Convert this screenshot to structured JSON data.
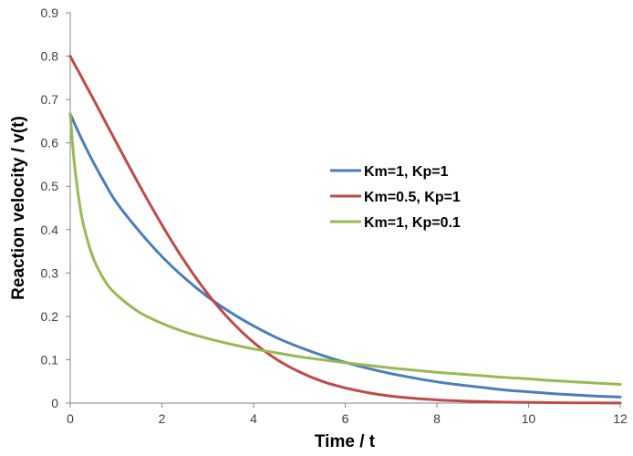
{
  "chart_data": {
    "type": "line",
    "title": "",
    "xlabel": "Time / t",
    "ylabel": "Reaction velocity  / v(t)",
    "xlim": [
      0,
      12
    ],
    "ylim": [
      0,
      0.9
    ],
    "x_ticks": [
      "0",
      "2",
      "4",
      "6",
      "8",
      "10",
      "12"
    ],
    "y_ticks": [
      "0",
      "0.1",
      "0.2",
      "0.3",
      "0.4",
      "0.5",
      "0.6",
      "0.7",
      "0.8",
      "0.9"
    ],
    "grid": false,
    "legend_position": "right-middle",
    "x": [
      0,
      0.05,
      0.1,
      0.2,
      0.3,
      0.5,
      0.75,
      1,
      1.5,
      2,
      2.5,
      3,
      3.5,
      4,
      4.5,
      5,
      5.5,
      6,
      6.5,
      7,
      7.5,
      8,
      8.5,
      9,
      9.5,
      10,
      10.5,
      11,
      11.5,
      12
    ],
    "series": [
      {
        "name": "Km=1, Kp=1",
        "color": "#4A7EBB",
        "values": [
          0.667,
          0.655,
          0.643,
          0.62,
          0.598,
          0.556,
          0.508,
          0.464,
          0.397,
          0.338,
          0.288,
          0.245,
          0.209,
          0.178,
          0.151,
          0.129,
          0.11,
          0.094,
          0.08,
          0.068,
          0.058,
          0.049,
          0.042,
          0.036,
          0.03,
          0.026,
          0.022,
          0.019,
          0.016,
          0.014
        ]
      },
      {
        "name": "Km=0.5, Kp=1",
        "color": "#BE4B48",
        "values": [
          0.8,
          0.79,
          0.78,
          0.761,
          0.741,
          0.702,
          0.652,
          0.602,
          0.504,
          0.411,
          0.326,
          0.252,
          0.19,
          0.14,
          0.101,
          0.072,
          0.05,
          0.035,
          0.024,
          0.016,
          0.011,
          0.0074,
          0.0049,
          0.0033,
          0.0022,
          0.0015,
          0.001,
          0.0006,
          0.0004,
          0.0003
        ]
      },
      {
        "name": "Km=1, Kp=0.1",
        "color": "#98B954",
        "values": [
          0.667,
          0.598,
          0.543,
          0.462,
          0.406,
          0.335,
          0.283,
          0.251,
          0.21,
          0.184,
          0.164,
          0.149,
          0.136,
          0.125,
          0.116,
          0.107,
          0.1,
          0.093,
          0.087,
          0.081,
          0.076,
          0.071,
          0.067,
          0.063,
          0.059,
          0.056,
          0.052,
          0.049,
          0.046,
          0.043
        ]
      }
    ]
  }
}
